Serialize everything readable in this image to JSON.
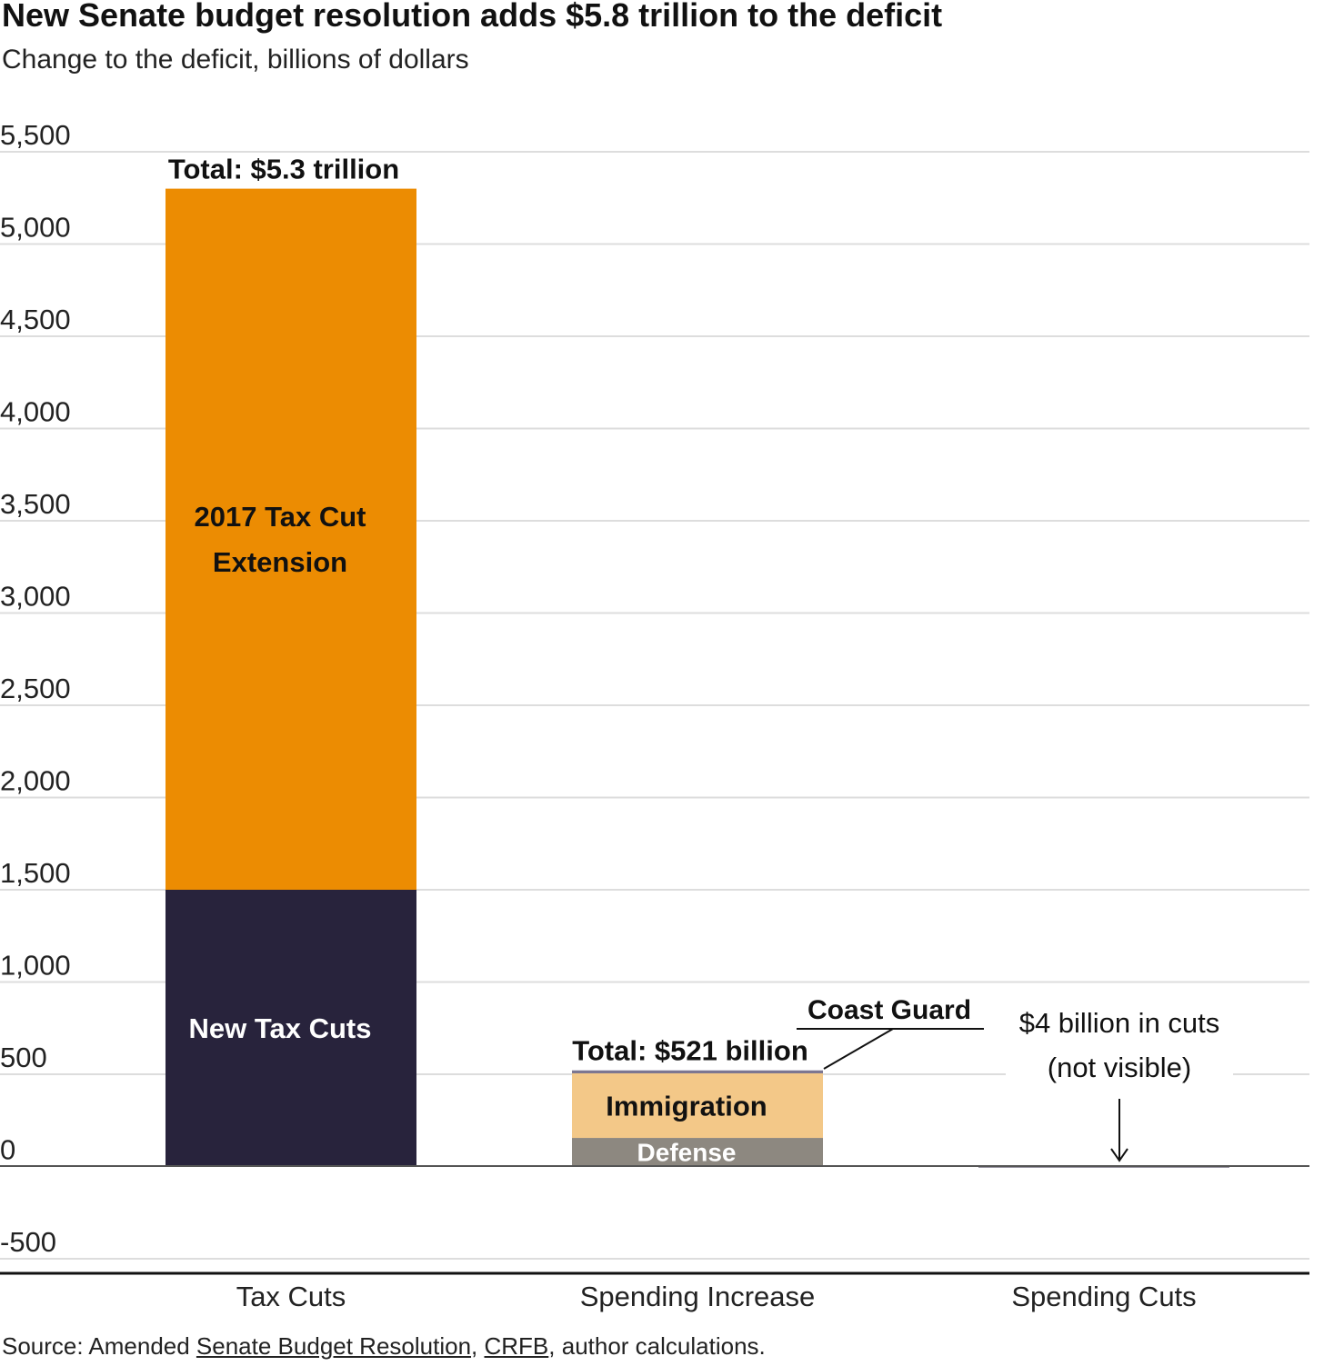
{
  "chart_data": {
    "type": "bar",
    "title": "New Senate budget resolution adds $5.8 trillion to the deficit",
    "subtitle": "Change to the deficit, billions of dollars",
    "ylim": [
      -500,
      5500
    ],
    "yticks": [
      5500,
      5000,
      4500,
      4000,
      3500,
      3000,
      2500,
      2000,
      1500,
      1000,
      500,
      0,
      -500
    ],
    "ytick_labels": [
      "5,500",
      "5,000",
      "4,500",
      "4,000",
      "3,500",
      "3,000",
      "2,500",
      "2,000",
      "1,500",
      "1,000",
      "500",
      "0",
      "-500"
    ],
    "grid": true,
    "categories": [
      "Tax Cuts",
      "Spending Increase",
      "Spending Cuts"
    ],
    "stacks": [
      {
        "category": "Tax Cuts",
        "segments": [
          {
            "name": "New Tax Cuts",
            "label": "New Tax Cuts",
            "value": 1500,
            "color": "#28233c",
            "label_color": "#ffffff"
          },
          {
            "name": "2017 Tax Cut Extension",
            "label": "2017 Tax Cut Extension",
            "label_lines": [
              "2017 Tax Cut",
              "Extension"
            ],
            "value": 3800,
            "color": "#ec8c02",
            "label_color": "#111111"
          }
        ],
        "total_label": "Total: $5.3 trillion"
      },
      {
        "category": "Spending Increase",
        "segments": [
          {
            "name": "Defense",
            "label": "Defense",
            "value": 155,
            "color": "#8d8880",
            "label_color": "#ffffff"
          },
          {
            "name": "Immigration",
            "label": "Immigration",
            "value": 350,
            "color": "#f3c888",
            "label_color": "#111111"
          },
          {
            "name": "Coast Guard",
            "label": "Coast Guard",
            "value": 16,
            "color": "#7c7690",
            "label_color": "#111111"
          }
        ],
        "total_label": "Total: $521 billion"
      },
      {
        "category": "Spending Cuts",
        "segments": [
          {
            "name": "Spending Cuts",
            "label": "",
            "value": -4,
            "color": "#28233c"
          }
        ],
        "total_label": ""
      }
    ],
    "annotations": {
      "coast_guard": "Coast Guard",
      "cuts_note_lines": [
        "$4 billion in cuts",
        "(not visible)"
      ]
    },
    "source": {
      "prefix": "Source: Amended ",
      "link1": "Senate Budget Resolution",
      "sep": ", ",
      "link2": "CRFB",
      "suffix": ", author calculations."
    }
  }
}
